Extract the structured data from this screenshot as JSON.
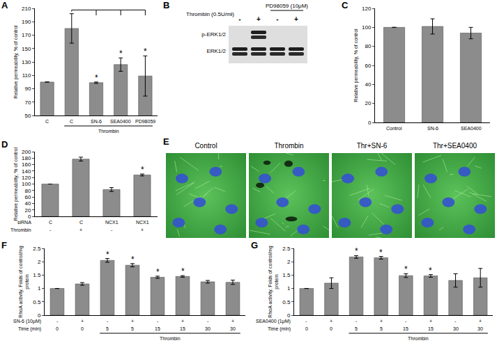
{
  "chart_data": [
    {
      "panel": "A",
      "type": "bar",
      "categories": [
        "C",
        "C",
        "SN-6",
        "SEA0400",
        "PD98059"
      ],
      "values": [
        100,
        180,
        99,
        126,
        109
      ],
      "errors": [
        0,
        22,
        1,
        10,
        30
      ],
      "color": "#8c8c8c",
      "y_label": "Relative permeability, % of control",
      "ylim": [
        50,
        210
      ],
      "yticks": [
        50,
        70,
        90,
        110,
        130,
        150,
        170,
        190,
        210
      ],
      "grid": false,
      "annotations": [
        {
          "text": "*",
          "x": 2
        },
        {
          "text": "*",
          "x": 3
        },
        {
          "text": "*",
          "x": 4
        }
      ],
      "groups": [
        {
          "text": "Thrombin",
          "x0": 1,
          "x1": 4
        }
      ],
      "comparison": {
        "reference": 1,
        "compared": [
          2,
          3,
          4
        ]
      }
    },
    {
      "panel": "C",
      "type": "bar",
      "categories": [
        "Control",
        "SN-6",
        "SEA0400"
      ],
      "values": [
        100,
        101,
        94
      ],
      "errors": [
        0,
        8,
        6
      ],
      "color": "#8c8c8c",
      "y_label": "Relative permeability, % of control",
      "ylim": [
        0,
        120
      ],
      "yticks": [
        0,
        20,
        40,
        60,
        80,
        100,
        120
      ],
      "grid": false
    },
    {
      "panel": "D",
      "type": "bar",
      "category_title": "siRNA",
      "categories": [
        "C",
        "C",
        "NCX1",
        "NCX1"
      ],
      "category_rows": [
        {
          "label": "Thrombin",
          "values": [
            "-",
            "+",
            "-",
            "+"
          ]
        }
      ],
      "values": [
        100,
        177,
        83,
        128
      ],
      "errors": [
        0,
        6,
        6,
        3
      ],
      "color": "#8c8c8c",
      "y_label": "Relative permeability, % of control",
      "ylim": [
        0,
        200
      ],
      "yticks": [
        0,
        20,
        40,
        60,
        80,
        100,
        120,
        140,
        160,
        180,
        200
      ],
      "grid": false,
      "annotations": [
        {
          "text": "*",
          "x": 3
        }
      ]
    },
    {
      "panel": "F",
      "type": "bar",
      "category_title": "SN-6 (10μM)",
      "categories": [
        "-",
        "+",
        "-",
        "+",
        "-",
        "+",
        "-",
        "+"
      ],
      "category_rows": [
        {
          "label": "Time (min)",
          "values": [
            "0",
            "0",
            "5",
            "5",
            "15",
            "15",
            "30",
            "30"
          ]
        }
      ],
      "values": [
        1.0,
        1.17,
        2.05,
        1.87,
        1.42,
        1.45,
        1.25,
        1.23
      ],
      "errors": [
        0,
        0.05,
        0.07,
        0.06,
        0.04,
        0.03,
        0.05,
        0.08
      ],
      "color": "#8c8c8c",
      "y_label": "RhoA activity. Folds of control/mg\nprotein",
      "ylim": [
        0,
        2.5
      ],
      "yticks": [
        0,
        0.5,
        1,
        1.5,
        2,
        2.5
      ],
      "grid": false,
      "annotations": [
        {
          "text": "*",
          "x": 2
        },
        {
          "text": "*",
          "x": 3
        },
        {
          "text": "*",
          "x": 4
        },
        {
          "text": "*",
          "x": 5
        }
      ],
      "groups": [
        {
          "text": "Thrombin",
          "x0": 2,
          "x1": 7
        }
      ]
    },
    {
      "panel": "G",
      "type": "bar",
      "category_title": "SEA0400 (1μM)",
      "categories": [
        "-",
        "+",
        "-",
        "+",
        "-",
        "+",
        "-",
        "+"
      ],
      "category_rows": [
        {
          "label": "Time (min)",
          "values": [
            "0",
            "0",
            "5",
            "5",
            "15",
            "15",
            "30",
            "30"
          ]
        }
      ],
      "values": [
        1.0,
        1.2,
        2.18,
        2.15,
        1.48,
        1.47,
        1.3,
        1.4
      ],
      "errors": [
        0,
        0.2,
        0.05,
        0.05,
        0.07,
        0.05,
        0.25,
        0.35
      ],
      "color": "#8c8c8c",
      "y_label": "RhoA activity. Folds of control/mg\nprotein",
      "ylim": [
        0,
        2.5
      ],
      "yticks": [
        0,
        0.5,
        1,
        1.5,
        2,
        2.5
      ],
      "grid": false,
      "annotations": [
        {
          "text": "*",
          "x": 2
        },
        {
          "text": "*",
          "x": 3
        },
        {
          "text": "*",
          "x": 4
        },
        {
          "text": "*",
          "x": 5
        }
      ],
      "groups": [
        {
          "text": "Thrombin",
          "x0": 2,
          "x1": 7
        }
      ]
    }
  ],
  "blot": {
    "panel": "B",
    "treatment": {
      "label": "Thrombin (0.5U/ml)",
      "lanes": [
        "-",
        "+",
        "-",
        "+"
      ]
    },
    "inhibitor": {
      "label": "PD98059 (10μM)",
      "lanes": [
        2,
        3
      ]
    },
    "bands": [
      {
        "label": "p-ERK1/2",
        "present": [
          false,
          true,
          false,
          false
        ]
      },
      {
        "label": "ERK1/2",
        "present": [
          true,
          true,
          true,
          true
        ]
      }
    ]
  },
  "micrographs": {
    "panel": "E",
    "labels": [
      "Control",
      "Thrombin",
      "Thr+SN-6",
      "Thr+SEA0400"
    ]
  }
}
